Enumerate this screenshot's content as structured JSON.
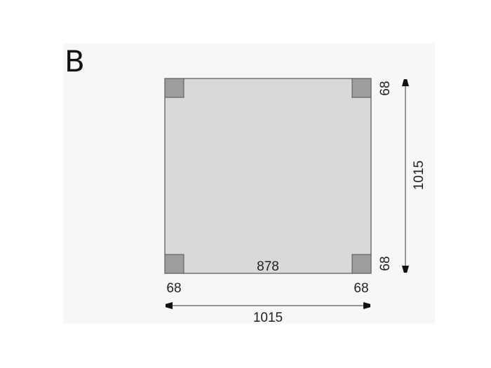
{
  "label": "B",
  "dimensions": {
    "inner_span": "878",
    "width_total": "1015",
    "height_total": "1015",
    "post_bottom_left": "68",
    "post_bottom_right": "68",
    "post_right_top": "68",
    "post_right_bottom": "68"
  },
  "colors": {
    "panel": "#f7f7f7",
    "floor": "#d9d9d9",
    "post": "#9d9d9d",
    "outline": "#555555"
  }
}
